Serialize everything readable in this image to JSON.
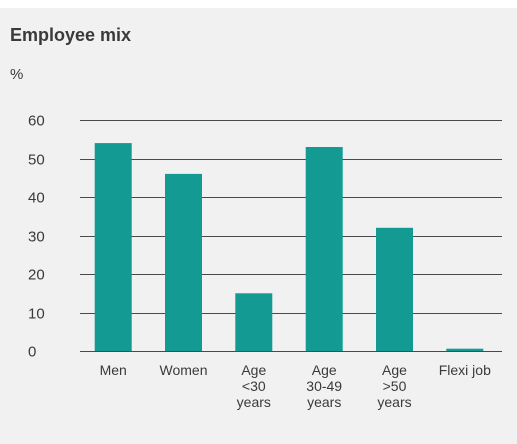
{
  "chart_data": {
    "type": "bar",
    "title": "Employee mix",
    "unit_label": "%",
    "categories": [
      [
        "Men"
      ],
      [
        "Women"
      ],
      [
        "Age",
        "<30",
        "years"
      ],
      [
        "Age",
        "30-49",
        "years"
      ],
      [
        "Age",
        ">50",
        "years"
      ],
      [
        "Flexi job"
      ]
    ],
    "values": [
      54,
      46,
      15,
      53,
      32,
      0.6
    ],
    "ylim": [
      0,
      60
    ],
    "yticks": [
      0,
      10,
      20,
      30,
      40,
      50,
      60
    ],
    "grid": true,
    "colors": {
      "bar": "#129a93",
      "grid": "#4a4a4a",
      "text": "#3a3a3a",
      "background": "#f1f1f1"
    }
  }
}
